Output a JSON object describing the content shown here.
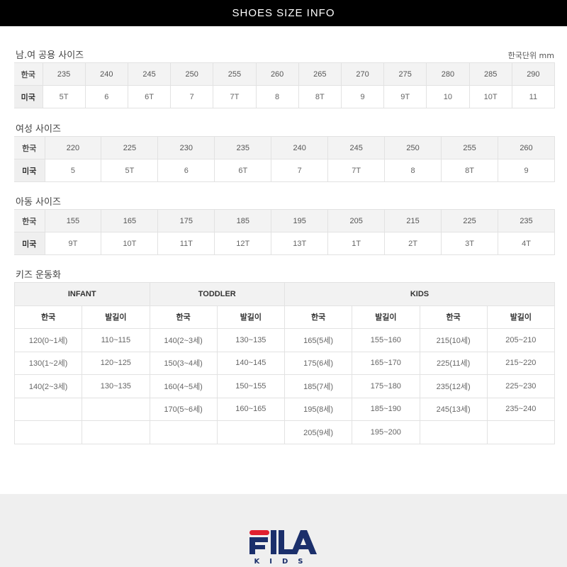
{
  "header": {
    "title": "SHOES SIZE INFO"
  },
  "unisex": {
    "title": "남.여 공용 사이즈",
    "unit": "한국단위 mm",
    "row_labels": [
      "한국",
      "미국"
    ],
    "kr": [
      "235",
      "240",
      "245",
      "250",
      "255",
      "260",
      "265",
      "270",
      "275",
      "280",
      "285",
      "290"
    ],
    "us": [
      "5T",
      "6",
      "6T",
      "7",
      "7T",
      "8",
      "8T",
      "9",
      "9T",
      "10",
      "10T",
      "11"
    ]
  },
  "women": {
    "title": "여성 사이즈",
    "row_labels": [
      "한국",
      "미국"
    ],
    "kr": [
      "220",
      "225",
      "230",
      "235",
      "240",
      "245",
      "250",
      "255",
      "260"
    ],
    "us": [
      "5",
      "5T",
      "6",
      "6T",
      "7",
      "7T",
      "8",
      "8T",
      "9"
    ]
  },
  "child": {
    "title": "아동 사이즈",
    "row_labels": [
      "한국",
      "미국"
    ],
    "kr": [
      "155",
      "165",
      "175",
      "185",
      "195",
      "205",
      "215",
      "225",
      "235"
    ],
    "us": [
      "9T",
      "10T",
      "11T",
      "12T",
      "13T",
      "1T",
      "2T",
      "3T",
      "4T"
    ]
  },
  "kids_shoes": {
    "title": "키즈 운동화",
    "groups": [
      "INFANT",
      "TODDLER",
      "KIDS"
    ],
    "subheaders": [
      "한국",
      "발길이",
      "한국",
      "발길이",
      "한국",
      "발길이",
      "한국",
      "발길이"
    ],
    "rows": [
      [
        "120(0~1세)",
        "110~115",
        "140(2~3세)",
        "130~135",
        "165(5세)",
        "155~160",
        "215(10세)",
        "205~210"
      ],
      [
        "130(1~2세)",
        "120~125",
        "150(3~4세)",
        "140~145",
        "175(6세)",
        "165~170",
        "225(11세)",
        "215~220"
      ],
      [
        "140(2~3세)",
        "130~135",
        "160(4~5세)",
        "150~155",
        "185(7세)",
        "175~180",
        "235(12세)",
        "225~230"
      ],
      [
        "",
        "",
        "170(5~6세)",
        "160~165",
        "195(8세)",
        "185~190",
        "245(13세)",
        "235~240"
      ],
      [
        "",
        "",
        "",
        "",
        "205(9세)",
        "195~200",
        "",
        ""
      ]
    ]
  },
  "footer": {
    "logo_text": "FILA",
    "logo_sub": "KIDS",
    "colors": {
      "navy": "#1b2f6b",
      "red": "#e0202f"
    }
  }
}
